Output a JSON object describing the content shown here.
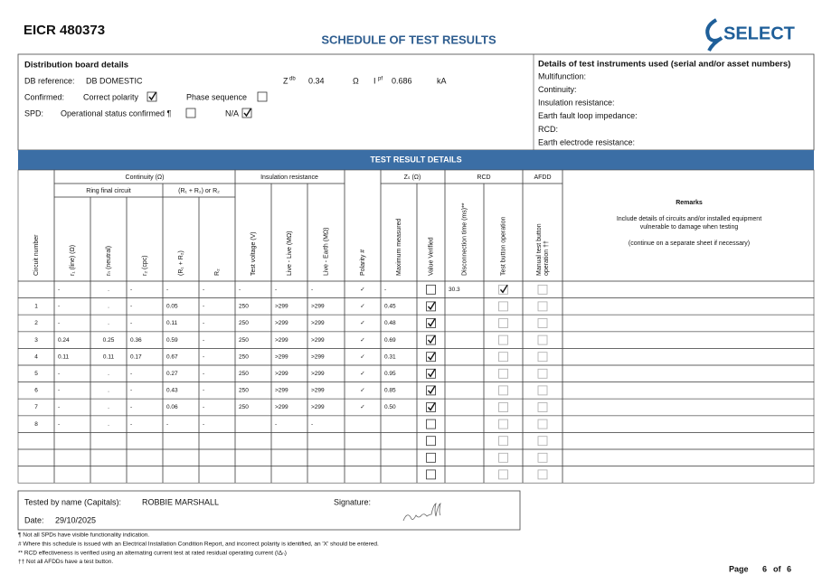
{
  "header": {
    "id": "EICR 480373",
    "title": "SCHEDULE OF TEST RESULTS",
    "logo": "SELECT"
  },
  "db": {
    "heading": "Distribution board details",
    "ref_label": "DB reference:",
    "ref": "DB DOMESTIC",
    "zdb_label": "Z",
    "zdb_sub": "db",
    "zdb": "0.34",
    "zdb_unit": "Ω",
    "ipf_label": "I",
    "ipf_sub": "pf",
    "ipf": "0.686",
    "ipf_unit": "kA",
    "confirmed_label": "Confirmed:",
    "polarity_label": "Correct polarity",
    "polarity_checked": true,
    "phase_label": "Phase sequence",
    "phase_checked": false,
    "spd_label": "SPD:",
    "spd_status_label": "Operational status confirmed ¶",
    "spd_status_checked": false,
    "na_label": "N/A",
    "na_checked": true
  },
  "instruments": {
    "heading": "Details of test instruments used (serial and/or asset numbers)",
    "items": [
      "Multifunction:",
      "Continuity:",
      "Insulation resistance:",
      "Earth fault loop impedance:",
      "RCD:",
      "Earth electrode resistance:"
    ]
  },
  "table": {
    "title": "TEST RESULT DETAILS",
    "groups": {
      "continuity": "Continuity (Ω)",
      "ring": "Ring final circuit",
      "r1r2": "(R₁ + R₂) or R₂",
      "insulation": "Insulation resistance",
      "zs": "Zₛ (Ω)",
      "rcd": "RCD",
      "afdd": "AFDD"
    },
    "columns": [
      "Circuit number",
      "r₁ (line) (Ω)",
      "rₙ (neutral)",
      "r₂ (cpc)",
      "(R₁ + R₂)",
      "R₂",
      "Test voltage (V)",
      "Live - Live (MΩ)",
      "Live - Earth (MΩ)",
      "Polarity #",
      "Maximum measured",
      "Value Verified",
      "Disconnection time (ms)**",
      "Test button operation",
      [
        "Manual test button",
        "operation ††"
      ]
    ],
    "remarks": {
      "heading": "Remarks",
      "lines": [
        "Include details of circuits and/or installed equipment",
        "vulnerable to damage when testing"
      ],
      "note": "(continue on a separate sheet if necessary)"
    },
    "rows": [
      [
        null,
        "-",
        ".",
        "-",
        "-",
        "-",
        "-",
        "-",
        "-",
        "✓",
        "-",
        false,
        "30.3",
        true,
        false
      ],
      [
        "1",
        "-",
        ".",
        "-",
        "0.05",
        "-",
        "250",
        ">299",
        ">299",
        "✓",
        "0.45",
        true,
        null,
        false,
        false
      ],
      [
        "2",
        "-",
        ".",
        "-",
        "0.11",
        "-",
        "250",
        ">299",
        ">299",
        "✓",
        "0.48",
        true,
        null,
        false,
        false
      ],
      [
        "3",
        "0.24",
        "0.25",
        "0.36",
        "0.59",
        "-",
        "250",
        ">299",
        ">299",
        "✓",
        "0.69",
        true,
        null,
        false,
        false
      ],
      [
        "4",
        "0.11",
        "0.11",
        "0.17",
        "0.67",
        "-",
        "250",
        ">299",
        ">299",
        "✓",
        "0.31",
        true,
        null,
        false,
        false
      ],
      [
        "5",
        "-",
        ".",
        "-",
        "0.27",
        "-",
        "250",
        ">299",
        ">299",
        "✓",
        "0.95",
        true,
        null,
        false,
        false
      ],
      [
        "6",
        "-",
        ".",
        "-",
        "0.43",
        "-",
        "250",
        ">299",
        ">299",
        "✓",
        "0.85",
        true,
        null,
        false,
        false
      ],
      [
        "7",
        "-",
        ".",
        "-",
        "0.06",
        "-",
        "250",
        ">299",
        ">299",
        "✓",
        "0.50",
        true,
        null,
        false,
        false
      ],
      [
        "8",
        "-",
        ".",
        "-",
        "-",
        "-",
        null,
        "-",
        "-",
        null,
        null,
        false,
        null,
        false,
        false
      ],
      [
        null,
        null,
        null,
        null,
        null,
        null,
        null,
        null,
        null,
        null,
        null,
        false,
        null,
        false,
        false
      ],
      [
        null,
        null,
        null,
        null,
        null,
        null,
        null,
        null,
        null,
        null,
        null,
        false,
        null,
        false,
        false
      ],
      [
        null,
        null,
        null,
        null,
        null,
        null,
        null,
        null,
        null,
        null,
        null,
        false,
        null,
        false,
        false
      ]
    ]
  },
  "signoff": {
    "name_label": "Tested by name (Capitals):",
    "name": "ROBBIE MARSHALL",
    "signature_label": "Signature:",
    "date_label": "Date:",
    "date": "29/10/2025"
  },
  "footnotes": [
    "¶ Not all SPDs have visible functionality indication.",
    "# Where this schedule is issued with an Electrical Installation Condition Report, and incorrect polarity is identified, an 'X' should be entered.",
    "** RCD effectiveness is verified using an alternating current test at rated residual operating current (IΔₙ)",
    "†† Not all AFDDs have a test button."
  ],
  "page": {
    "label": "Page",
    "current": "6",
    "of": "of",
    "total": "6"
  }
}
